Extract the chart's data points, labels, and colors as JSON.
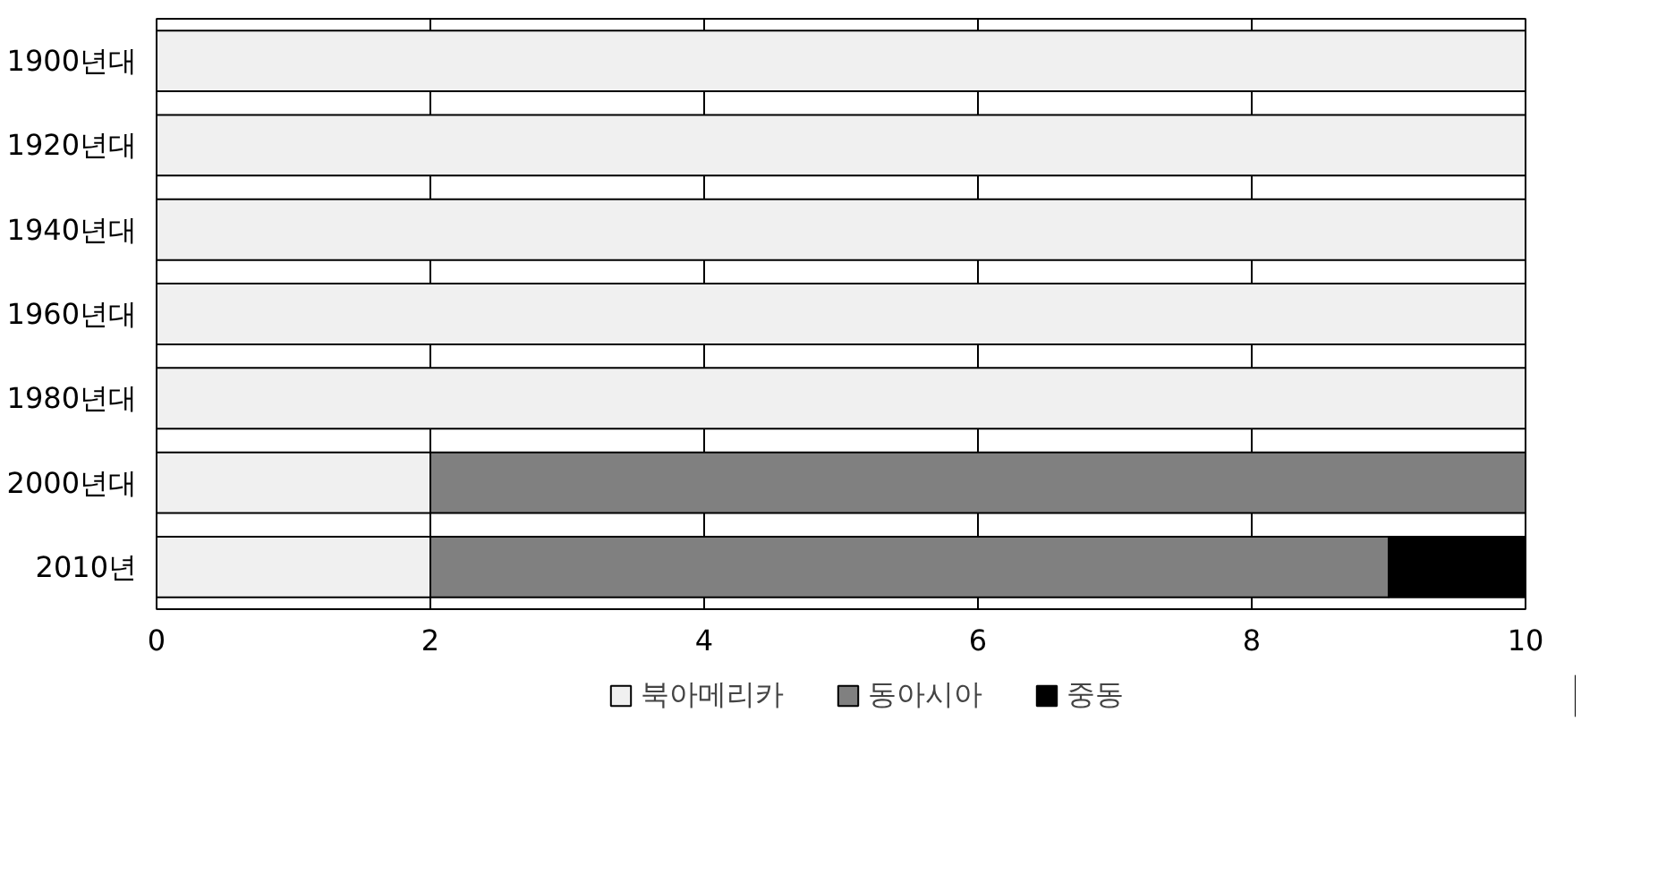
{
  "chart_data": {
    "type": "bar",
    "orientation": "horizontal",
    "stacked": true,
    "categories": [
      "1900년대",
      "1920년대",
      "1940년대",
      "1960년대",
      "1980년대",
      "2000년대",
      "2010년"
    ],
    "series": [
      {
        "name": "북아메리카",
        "color": "#f0f0f0",
        "values": [
          10,
          10,
          10,
          10,
          10,
          2,
          2
        ]
      },
      {
        "name": "동아시아",
        "color": "#808080",
        "values": [
          0,
          0,
          0,
          0,
          0,
          8,
          7
        ]
      },
      {
        "name": "중동",
        "color": "#000000",
        "values": [
          0,
          0,
          0,
          0,
          0,
          0,
          1
        ]
      }
    ],
    "xlim": [
      0,
      10
    ],
    "xticks": [
      0,
      2,
      4,
      6,
      8,
      10
    ],
    "grid": "x",
    "legend": "bottom"
  }
}
